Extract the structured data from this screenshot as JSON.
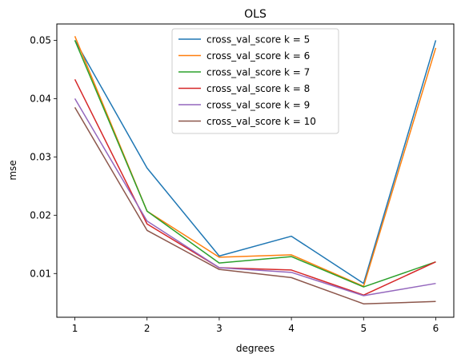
{
  "chart_data": {
    "type": "line",
    "title": "OLS",
    "xlabel": "degrees",
    "ylabel": "mse",
    "x": [
      1,
      2,
      3,
      4,
      5,
      6
    ],
    "xlim": [
      0.75,
      6.25
    ],
    "ylim": [
      0.0025,
      0.0528
    ],
    "xticks": [
      "1",
      "2",
      "3",
      "4",
      "5",
      "6"
    ],
    "yticks": [
      "0.01",
      "0.02",
      "0.03",
      "0.04",
      "0.05"
    ],
    "ytick_values": [
      0.01,
      0.02,
      0.03,
      0.04,
      0.05
    ],
    "grid": false,
    "legend_position": "top-center",
    "series": [
      {
        "name": "cross_val_score k = 5",
        "color": "#1f77b4",
        "values": [
          0.05,
          0.0281,
          0.013,
          0.0164,
          0.0083,
          0.05
        ]
      },
      {
        "name": "cross_val_score k = 6",
        "color": "#ff7f0e",
        "values": [
          0.0507,
          0.0207,
          0.0128,
          0.0132,
          0.0078,
          0.0487
        ]
      },
      {
        "name": "cross_val_score k = 7",
        "color": "#2ca02c",
        "values": [
          0.05,
          0.0207,
          0.0118,
          0.0129,
          0.0077,
          0.012
        ]
      },
      {
        "name": "cross_val_score k = 8",
        "color": "#d62728",
        "values": [
          0.0433,
          0.0185,
          0.011,
          0.0106,
          0.0063,
          0.012
        ]
      },
      {
        "name": "cross_val_score k = 9",
        "color": "#9467bd",
        "values": [
          0.04,
          0.019,
          0.011,
          0.0102,
          0.0062,
          0.0083
        ]
      },
      {
        "name": "cross_val_score k = 10",
        "color": "#8c564b",
        "values": [
          0.0385,
          0.0174,
          0.0107,
          0.0093,
          0.0048,
          0.0052
        ]
      }
    ]
  }
}
